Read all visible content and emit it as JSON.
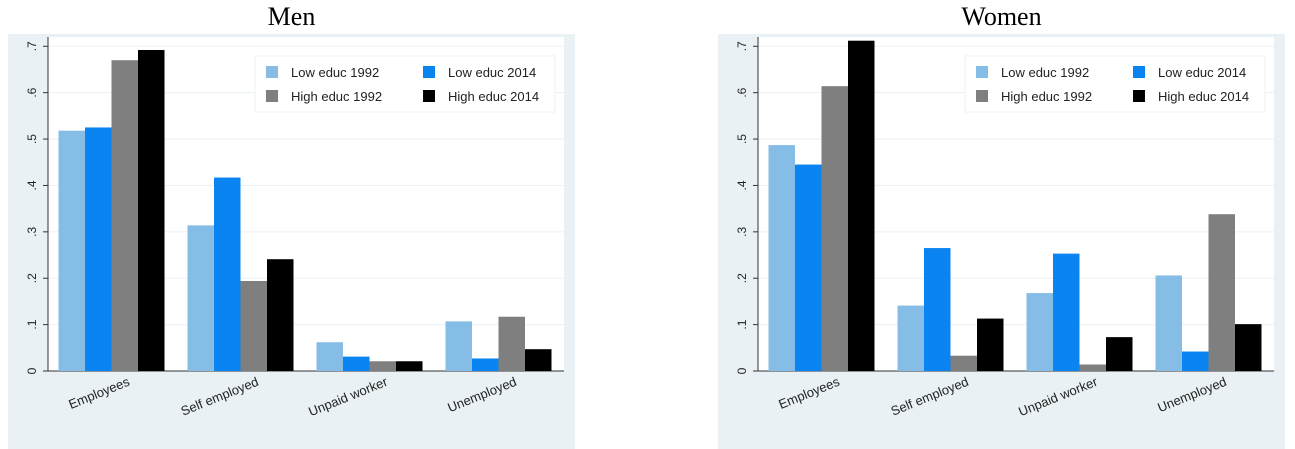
{
  "chart_data": [
    {
      "type": "bar",
      "title": "Men",
      "categories": [
        "Employees",
        "Self employed",
        "Unpaid worker",
        "Unemployed"
      ],
      "series": [
        {
          "name": "Low educ 1992",
          "color": "#85bde6",
          "values": [
            0.518,
            0.314,
            0.062,
            0.107
          ]
        },
        {
          "name": "Low educ 2014",
          "color": "#0a84f0",
          "values": [
            0.525,
            0.417,
            0.031,
            0.027
          ]
        },
        {
          "name": "High educ 1992",
          "color": "#7f7f7f",
          "values": [
            0.67,
            0.194,
            0.021,
            0.117
          ]
        },
        {
          "name": "High educ 2014",
          "color": "#000000",
          "values": [
            0.692,
            0.241,
            0.021,
            0.047
          ]
        }
      ],
      "yticks": [
        "0",
        ".1",
        ".2",
        ".3",
        ".4",
        ".5",
        ".6",
        ".7"
      ],
      "ylim": [
        0,
        0.72
      ],
      "xlabel": "",
      "ylabel": "",
      "grid": true,
      "legend": "top-right"
    },
    {
      "type": "bar",
      "title": "Women",
      "categories": [
        "Employees",
        "Self employed",
        "Unpaid worker",
        "Unemployed"
      ],
      "series": [
        {
          "name": "Low educ 1992",
          "color": "#85bde6",
          "values": [
            0.487,
            0.141,
            0.168,
            0.206
          ]
        },
        {
          "name": "Low educ 2014",
          "color": "#0a84f0",
          "values": [
            0.445,
            0.265,
            0.253,
            0.042
          ]
        },
        {
          "name": "High educ 1992",
          "color": "#7f7f7f",
          "values": [
            0.614,
            0.033,
            0.014,
            0.338
          ]
        },
        {
          "name": "High educ 2014",
          "color": "#000000",
          "values": [
            0.712,
            0.113,
            0.073,
            0.101
          ]
        }
      ],
      "yticks": [
        "0",
        ".1",
        ".2",
        ".3",
        ".4",
        ".5",
        ".6",
        ".7"
      ],
      "ylim": [
        0,
        0.72
      ],
      "xlabel": "",
      "ylabel": "",
      "grid": true,
      "legend": "top-right"
    }
  ]
}
